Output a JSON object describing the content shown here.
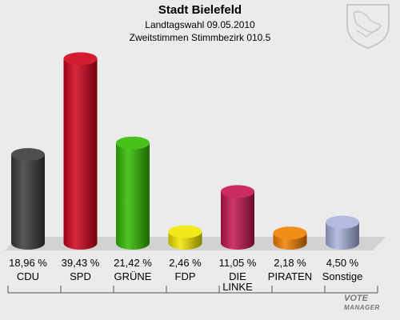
{
  "header": {
    "title": "Stadt Bielefeld",
    "subtitle1": "Landtagswahl 09.05.2010",
    "subtitle2": "Zweitstimmen Stimmbezirk 010.5"
  },
  "brand": {
    "line1": "VOTE",
    "line2": "MANAGER"
  },
  "chart_data": {
    "type": "bar",
    "categories": [
      "CDU",
      "SPD",
      "GRÜNE",
      "FDP",
      "DIE LINKE",
      "PIRATEN",
      "Sonstige"
    ],
    "values": [
      18.96,
      39.43,
      21.42,
      2.46,
      11.05,
      2.18,
      4.5
    ],
    "value_labels": [
      "18,96 %",
      "39,43 %",
      "21,42 %",
      "2,46 %",
      "11,05 %",
      "2,18 %",
      "4,50 %"
    ],
    "colors": [
      "#3a3a3a",
      "#d0021b",
      "#33bb00",
      "#f2e600",
      "#c4154d",
      "#f08000",
      "#a8b4dc"
    ],
    "ylim": [
      0,
      40
    ]
  }
}
